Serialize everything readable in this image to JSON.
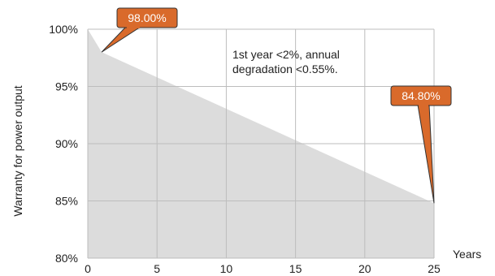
{
  "chart_data": {
    "type": "area",
    "xlabel": "Years",
    "ylabel": "Warranty for power output",
    "xlim": [
      0,
      25
    ],
    "ylim": [
      80,
      100
    ],
    "xticks": [
      0,
      5,
      10,
      15,
      20,
      25
    ],
    "yticks": [
      80,
      85,
      90,
      95,
      100
    ],
    "ytick_labels": [
      "80%",
      "85%",
      "90%",
      "95%",
      "100%"
    ],
    "grid": true,
    "fill_color": "#dcdcdc",
    "x": [
      0,
      1,
      25
    ],
    "y": [
      100,
      98.0,
      84.8
    ],
    "annotation": [
      "1st year <2%, annual",
      "degradation <0.55%."
    ],
    "callouts": [
      {
        "x": 1,
        "y": 98.0,
        "label": "98.00%"
      },
      {
        "x": 25,
        "y": 84.8,
        "label": "84.80%"
      }
    ],
    "callout_color": "#d96a2b"
  }
}
